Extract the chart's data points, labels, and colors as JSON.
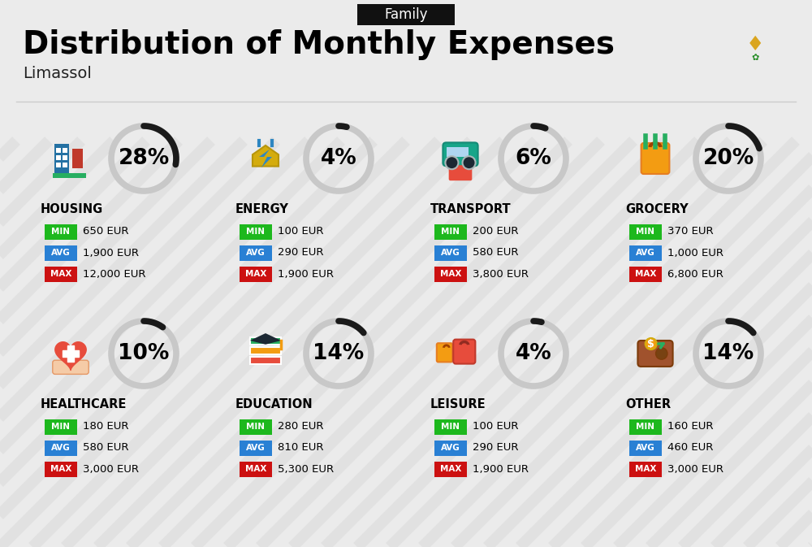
{
  "title": "Distribution of Monthly Expenses",
  "subtitle": "Limassol",
  "tag": "Family",
  "bg_color": "#ebebeb",
  "categories": [
    {
      "name": "HOUSING",
      "pct": 28,
      "min": "650 EUR",
      "avg": "1,900 EUR",
      "max": "12,000 EUR",
      "row": 0,
      "col": 0
    },
    {
      "name": "ENERGY",
      "pct": 4,
      "min": "100 EUR",
      "avg": "290 EUR",
      "max": "1,900 EUR",
      "row": 0,
      "col": 1
    },
    {
      "name": "TRANSPORT",
      "pct": 6,
      "min": "200 EUR",
      "avg": "580 EUR",
      "max": "3,800 EUR",
      "row": 0,
      "col": 2
    },
    {
      "name": "GROCERY",
      "pct": 20,
      "min": "370 EUR",
      "avg": "1,000 EUR",
      "max": "6,800 EUR",
      "row": 0,
      "col": 3
    },
    {
      "name": "HEALTHCARE",
      "pct": 10,
      "min": "180 EUR",
      "avg": "580 EUR",
      "max": "3,000 EUR",
      "row": 1,
      "col": 0
    },
    {
      "name": "EDUCATION",
      "pct": 14,
      "min": "280 EUR",
      "avg": "810 EUR",
      "max": "5,300 EUR",
      "row": 1,
      "col": 1
    },
    {
      "name": "LEISURE",
      "pct": 4,
      "min": "100 EUR",
      "avg": "290 EUR",
      "max": "1,900 EUR",
      "row": 1,
      "col": 2
    },
    {
      "name": "OTHER",
      "pct": 14,
      "min": "160 EUR",
      "avg": "460 EUR",
      "max": "3,000 EUR",
      "row": 1,
      "col": 3
    }
  ],
  "min_color": "#1db81d",
  "avg_color": "#2980d4",
  "max_color": "#cc1111",
  "pct_fontsize": 19,
  "cat_fontsize": 10.5,
  "val_fontsize": 9.5,
  "title_fontsize": 28,
  "subtitle_fontsize": 14,
  "tag_fontsize": 12,
  "circle_color_dark": "#1a1a1a",
  "circle_color_light": "#c8c8c8",
  "stripe_color": "#d8d8d8"
}
